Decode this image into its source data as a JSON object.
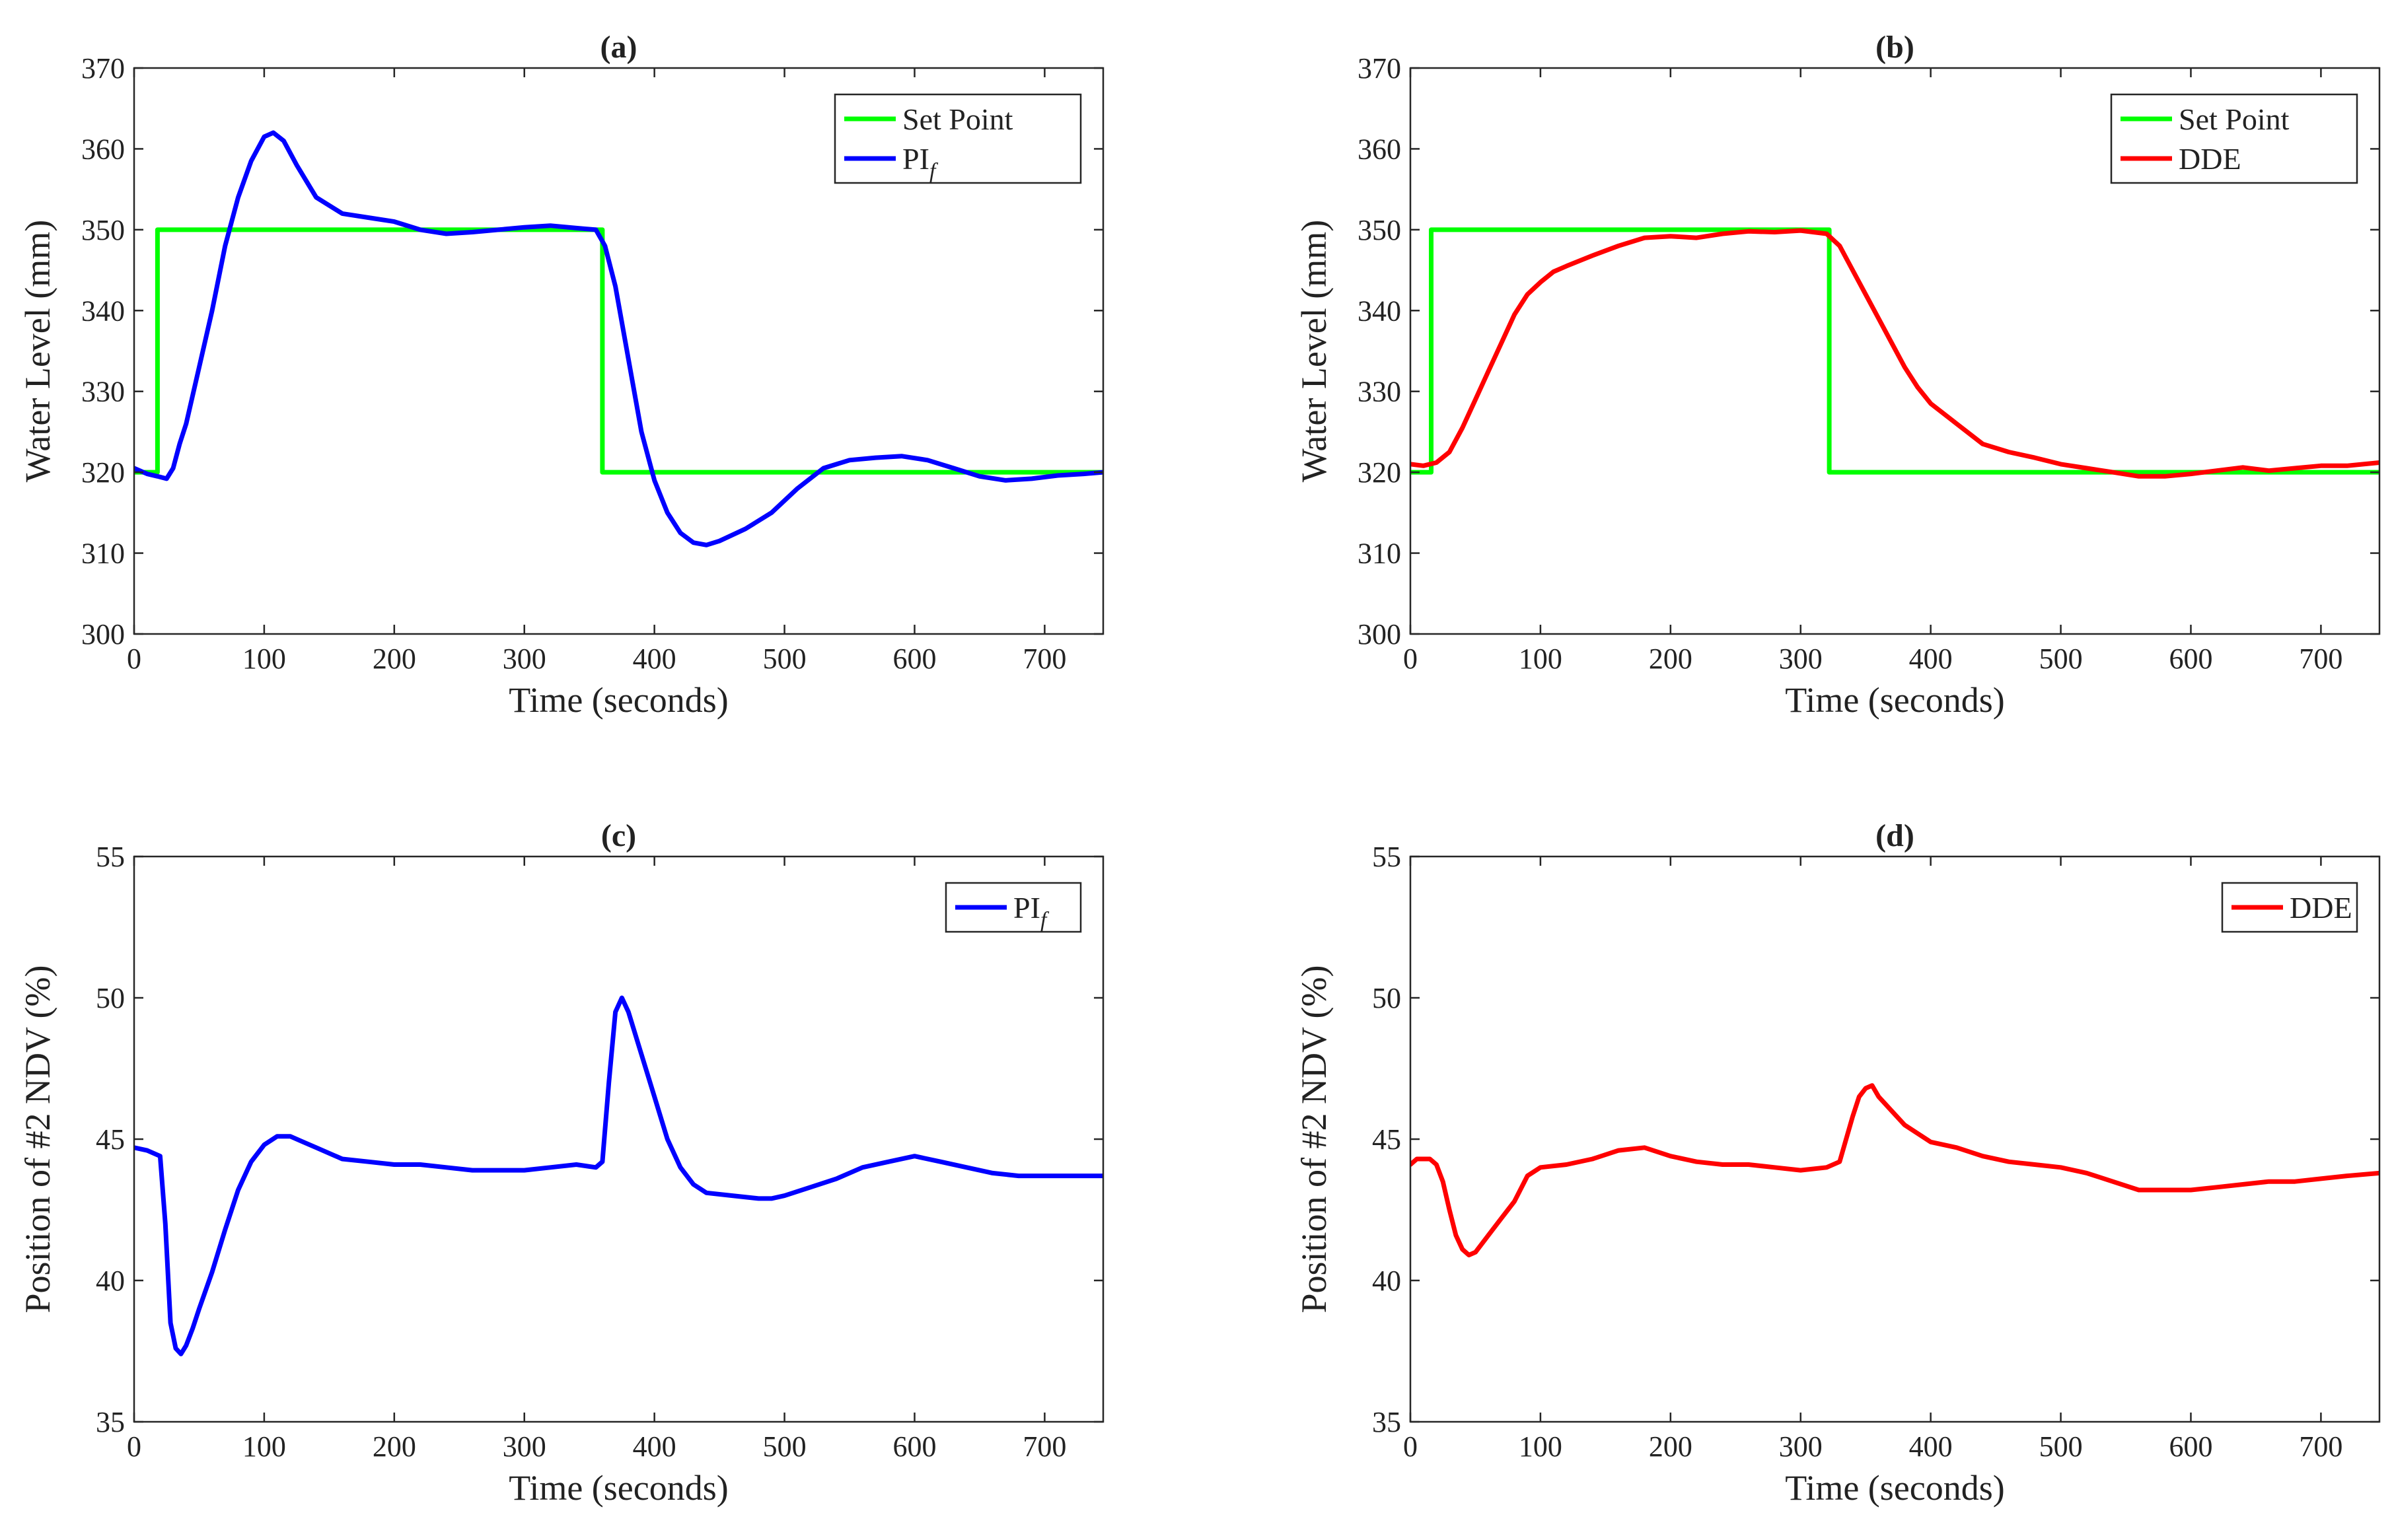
{
  "chart_data": [
    {
      "type": "line",
      "id": "a",
      "title": "(a)",
      "xlabel": "Time (seconds)",
      "ylabel": "Water Level (mm)",
      "xlim": [
        0,
        745
      ],
      "ylim": [
        300,
        370
      ],
      "xticks": [
        "0",
        "100",
        "200",
        "300",
        "400",
        "500",
        "600",
        "700"
      ],
      "yticks": [
        "300",
        "310",
        "320",
        "330",
        "340",
        "350",
        "360",
        "370"
      ],
      "legend_position": "top-right",
      "series": [
        {
          "name": "Set Point",
          "color": "#00ff00",
          "step": true,
          "x": [
            0,
            18,
            18,
            360,
            360,
            745
          ],
          "y": [
            320,
            320,
            350,
            350,
            320,
            320
          ]
        },
        {
          "name": "PI",
          "name_subscript": "f",
          "color": "#0000ff",
          "x": [
            0,
            10,
            18,
            25,
            30,
            35,
            40,
            50,
            60,
            70,
            80,
            90,
            100,
            107,
            115,
            125,
            140,
            160,
            180,
            200,
            220,
            240,
            260,
            280,
            300,
            320,
            340,
            355,
            362,
            370,
            380,
            390,
            400,
            410,
            420,
            430,
            440,
            450,
            470,
            490,
            510,
            530,
            550,
            570,
            590,
            610,
            630,
            650,
            670,
            690,
            710,
            730,
            745
          ],
          "y": [
            320.5,
            319.8,
            319.5,
            319.2,
            320.5,
            323.5,
            326,
            333,
            340,
            348,
            354,
            358.5,
            361.5,
            362,
            361,
            358,
            354,
            352,
            351.5,
            351,
            350,
            349.5,
            349.7,
            350,
            350.3,
            350.5,
            350.2,
            350,
            348,
            343,
            334,
            325,
            319,
            315,
            312.5,
            311.3,
            311,
            311.5,
            313,
            315,
            318,
            320.5,
            321.5,
            321.8,
            322,
            321.5,
            320.5,
            319.5,
            319,
            319.2,
            319.6,
            319.8,
            320
          ]
        }
      ]
    },
    {
      "type": "line",
      "id": "b",
      "title": "(b)",
      "xlabel": "Time (seconds)",
      "ylabel": "Water Level (mm)",
      "xlim": [
        0,
        745
      ],
      "ylim": [
        300,
        370
      ],
      "xticks": [
        "0",
        "100",
        "200",
        "300",
        "400",
        "500",
        "600",
        "700"
      ],
      "yticks": [
        "300",
        "310",
        "320",
        "330",
        "340",
        "350",
        "360",
        "370"
      ],
      "legend_position": "top-right",
      "series": [
        {
          "name": "Set Point",
          "color": "#00ff00",
          "step": true,
          "x": [
            0,
            16,
            16,
            322,
            322,
            745
          ],
          "y": [
            320,
            320,
            350,
            350,
            320,
            320
          ]
        },
        {
          "name": "DDE",
          "color": "#ff0000",
          "x": [
            0,
            10,
            20,
            30,
            40,
            50,
            60,
            70,
            80,
            90,
            100,
            110,
            120,
            140,
            160,
            180,
            200,
            220,
            240,
            260,
            280,
            300,
            320,
            330,
            340,
            350,
            360,
            370,
            380,
            390,
            400,
            420,
            440,
            460,
            480,
            500,
            520,
            540,
            560,
            580,
            600,
            620,
            640,
            660,
            680,
            700,
            720,
            745
          ],
          "y": [
            321,
            320.8,
            321.2,
            322.5,
            325.5,
            329,
            332.5,
            336,
            339.5,
            342,
            343.5,
            344.8,
            345.5,
            346.8,
            348,
            349,
            349.2,
            349,
            349.5,
            349.8,
            349.7,
            349.9,
            349.5,
            348,
            345,
            342,
            339,
            336,
            333,
            330.5,
            328.5,
            326,
            323.5,
            322.5,
            321.8,
            321,
            320.5,
            320,
            319.5,
            319.5,
            319.8,
            320.2,
            320.6,
            320.2,
            320.5,
            320.8,
            320.8,
            321.2
          ]
        }
      ]
    },
    {
      "type": "line",
      "id": "c",
      "title": "(c)",
      "xlabel": "Time (seconds)",
      "ylabel": "Position of #2 NDV (%)",
      "xlim": [
        0,
        745
      ],
      "ylim": [
        35,
        55
      ],
      "xticks": [
        "0",
        "100",
        "200",
        "300",
        "400",
        "500",
        "600",
        "700"
      ],
      "yticks": [
        "35",
        "40",
        "45",
        "50",
        "55"
      ],
      "legend_position": "top-right",
      "series": [
        {
          "name": "PI",
          "name_subscript": "f",
          "color": "#0000ff",
          "x": [
            0,
            10,
            20,
            24,
            28,
            32,
            36,
            40,
            45,
            50,
            60,
            70,
            80,
            90,
            100,
            110,
            120,
            130,
            140,
            150,
            160,
            180,
            200,
            220,
            240,
            260,
            280,
            300,
            320,
            340,
            355,
            360,
            365,
            370,
            375,
            380,
            390,
            400,
            410,
            420,
            430,
            440,
            460,
            480,
            490,
            500,
            520,
            540,
            560,
            580,
            600,
            620,
            640,
            660,
            680,
            700,
            720,
            745
          ],
          "y": [
            44.7,
            44.6,
            44.4,
            42,
            38.5,
            37.6,
            37.4,
            37.7,
            38.3,
            39,
            40.3,
            41.8,
            43.2,
            44.2,
            44.8,
            45.1,
            45.1,
            44.9,
            44.7,
            44.5,
            44.3,
            44.2,
            44.1,
            44.1,
            44,
            43.9,
            43.9,
            43.9,
            44,
            44.1,
            44,
            44.2,
            47,
            49.5,
            50,
            49.5,
            48,
            46.5,
            45,
            44,
            43.4,
            43.1,
            43,
            42.9,
            42.9,
            43,
            43.3,
            43.6,
            44,
            44.2,
            44.4,
            44.2,
            44,
            43.8,
            43.7,
            43.7,
            43.7,
            43.7
          ]
        }
      ]
    },
    {
      "type": "line",
      "id": "d",
      "title": "(d)",
      "xlabel": "Time (seconds)",
      "ylabel": "Position of #2 NDV (%)",
      "xlim": [
        0,
        745
      ],
      "ylim": [
        35,
        55
      ],
      "xticks": [
        "0",
        "100",
        "200",
        "300",
        "400",
        "500",
        "600",
        "700"
      ],
      "yticks": [
        "35",
        "40",
        "45",
        "50",
        "55"
      ],
      "legend_position": "top-right",
      "series": [
        {
          "name": "DDE",
          "color": "#ff0000",
          "x": [
            0,
            5,
            15,
            20,
            25,
            30,
            35,
            40,
            45,
            50,
            60,
            70,
            80,
            90,
            100,
            120,
            140,
            160,
            180,
            200,
            220,
            240,
            260,
            280,
            300,
            320,
            330,
            340,
            345,
            350,
            355,
            360,
            370,
            380,
            390,
            400,
            420,
            440,
            460,
            480,
            500,
            520,
            540,
            560,
            580,
            600,
            620,
            640,
            660,
            680,
            700,
            720,
            745
          ],
          "y": [
            44.1,
            44.3,
            44.3,
            44.1,
            43.5,
            42.5,
            41.6,
            41.1,
            40.9,
            41,
            41.6,
            42.2,
            42.8,
            43.7,
            44,
            44.1,
            44.3,
            44.6,
            44.7,
            44.4,
            44.2,
            44.1,
            44.1,
            44,
            43.9,
            44,
            44.2,
            45.8,
            46.5,
            46.8,
            46.9,
            46.5,
            46,
            45.5,
            45.2,
            44.9,
            44.7,
            44.4,
            44.2,
            44.1,
            44,
            43.8,
            43.5,
            43.2,
            43.2,
            43.2,
            43.3,
            43.4,
            43.5,
            43.5,
            43.6,
            43.7,
            43.8
          ]
        }
      ]
    }
  ]
}
